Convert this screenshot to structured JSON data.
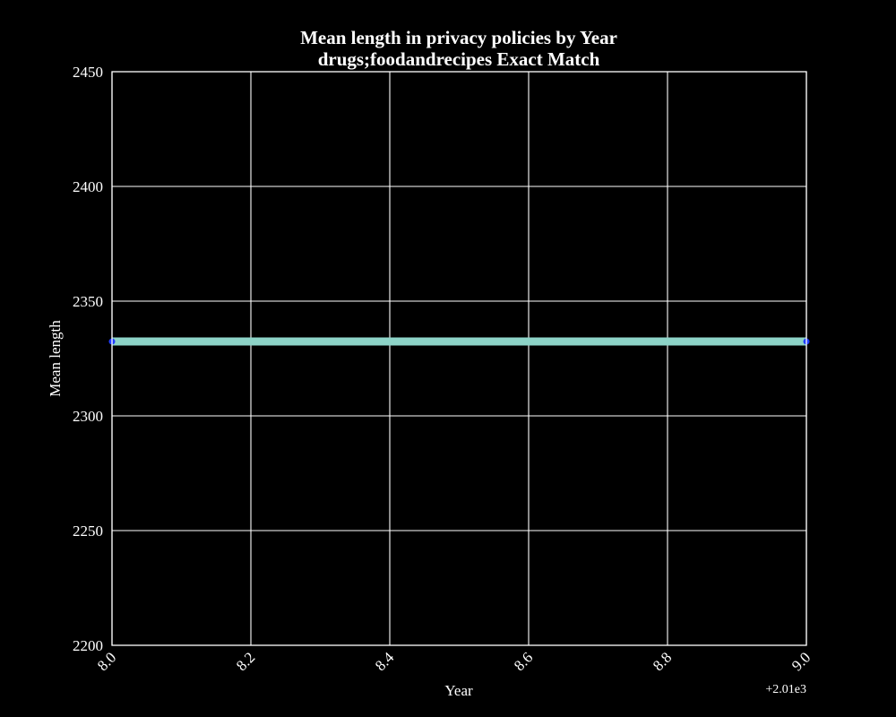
{
  "chart_data": {
    "type": "line",
    "title": "Mean length in privacy policies by Year",
    "subtitle": "drugs;foodandrecipes Exact Match",
    "xlabel": "Year",
    "ylabel": "Mean length",
    "x_offset_label": "+2.01e3",
    "x": [
      8.0,
      9.0
    ],
    "series": [
      {
        "values": [
          2332.4,
          2332.4
        ],
        "color": "#8dd3c7",
        "marker_color": "#1f3cff"
      }
    ],
    "xlim": [
      8.0,
      9.0
    ],
    "ylim": [
      2200,
      2450
    ],
    "xticks": [
      8.0,
      8.2,
      8.4,
      8.6,
      8.8,
      9.0
    ],
    "xtick_labels": [
      "8.0",
      "8.2",
      "8.4",
      "8.6",
      "8.8",
      "9.0"
    ],
    "yticks": [
      2200,
      2250,
      2300,
      2350,
      2400,
      2450
    ],
    "ytick_labels": [
      "2200",
      "2250",
      "2300",
      "2350",
      "2400",
      "2450"
    ],
    "grid": true,
    "background": "#000000",
    "foreground": "#ffffff"
  }
}
